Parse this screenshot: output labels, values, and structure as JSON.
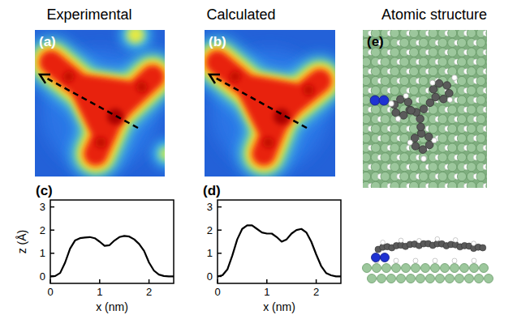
{
  "columns": [
    "Experimental",
    "Calculated",
    "Atomic structure"
  ],
  "image_panels": [
    {
      "label": "(a)"
    },
    {
      "label": "(b)"
    },
    {
      "label": "(e)"
    }
  ],
  "chart_data": [
    {
      "type": "line",
      "title": "(c)",
      "xlabel": "x (nm)",
      "ylabel": "z (Å)",
      "x": [
        0,
        0.1,
        0.2,
        0.3,
        0.4,
        0.5,
        0.6,
        0.7,
        0.8,
        0.9,
        1.0,
        1.1,
        1.2,
        1.3,
        1.4,
        1.5,
        1.6,
        1.7,
        1.8,
        1.9,
        2.0,
        2.1,
        2.2,
        2.3,
        2.4,
        2.5
      ],
      "values": [
        0.0,
        0.02,
        0.15,
        0.6,
        1.2,
        1.55,
        1.65,
        1.68,
        1.7,
        1.65,
        1.5,
        1.32,
        1.35,
        1.55,
        1.7,
        1.75,
        1.72,
        1.6,
        1.4,
        1.1,
        0.6,
        0.25,
        0.08,
        0.02,
        0.0,
        0.0
      ],
      "color": "#000000",
      "xlim": [
        0,
        2.5
      ],
      "ylim": [
        -0.3,
        3.3
      ],
      "xticks": [
        0,
        1,
        2
      ],
      "yticks": [
        0,
        1,
        2,
        3
      ]
    },
    {
      "type": "line",
      "title": "(d)",
      "xlabel": "x (nm)",
      "x": [
        0,
        0.1,
        0.2,
        0.3,
        0.4,
        0.5,
        0.6,
        0.7,
        0.8,
        0.9,
        1.0,
        1.1,
        1.2,
        1.3,
        1.4,
        1.5,
        1.6,
        1.7,
        1.8,
        1.9,
        2.0,
        2.1,
        2.2,
        2.3,
        2.4,
        2.5
      ],
      "values": [
        0.0,
        0.05,
        0.3,
        0.9,
        1.6,
        2.05,
        2.2,
        2.2,
        2.05,
        1.9,
        1.85,
        1.85,
        1.7,
        1.5,
        1.6,
        1.85,
        2.0,
        2.05,
        1.9,
        1.5,
        0.95,
        0.45,
        0.15,
        0.05,
        0.0,
        0.0
      ],
      "color": "#000000",
      "xlim": [
        0,
        2.5
      ],
      "ylim": [
        -0.3,
        3.3
      ],
      "xticks": [
        0,
        1,
        2
      ],
      "yticks": [
        0,
        1,
        2,
        3
      ]
    }
  ]
}
